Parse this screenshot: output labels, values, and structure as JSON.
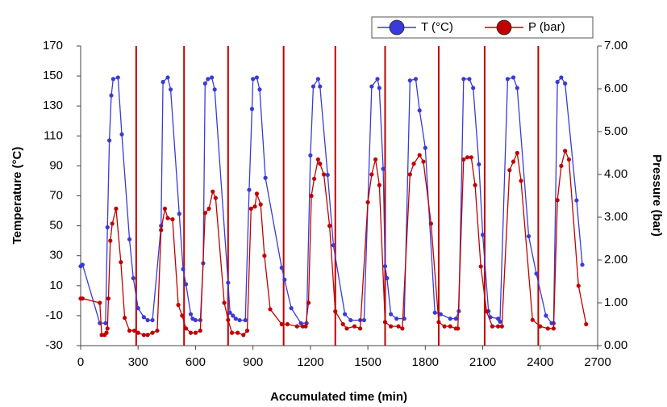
{
  "chart_data": {
    "type": "line",
    "xlabel": "Accumulated time (min)",
    "ylabel": "Temperature (°C)",
    "y2label": "Pressure (bar)",
    "xlim": [
      0,
      2700
    ],
    "xticks": [
      0,
      300,
      600,
      900,
      1200,
      1500,
      1800,
      2100,
      2400,
      2700
    ],
    "ylim": [
      -30,
      170
    ],
    "yticks": [
      -30,
      -10,
      10,
      30,
      50,
      70,
      90,
      110,
      130,
      150,
      170
    ],
    "y2lim": [
      0,
      7
    ],
    "y2ticks": [
      {
        "value": 0,
        "label": "0.00"
      },
      {
        "value": 1,
        "label": "1.00"
      },
      {
        "value": 2,
        "label": "2.00"
      },
      {
        "value": 3,
        "label": "3.00"
      },
      {
        "value": 4,
        "label": "4.00"
      },
      {
        "value": 5,
        "label": "5.00"
      },
      {
        "value": 6,
        "label": "6.00"
      },
      {
        "value": 7,
        "label": "7.00"
      }
    ],
    "legend": "top-right",
    "vlines": {
      "color": "#c00000",
      "x": [
        290,
        540,
        770,
        1060,
        1330,
        1590,
        1870,
        2110,
        2390
      ]
    },
    "series": [
      {
        "name": "T (°C)",
        "color": "#3a3ad6",
        "axis": "y",
        "x": [
          0,
          10,
          100,
          130,
          140,
          150,
          160,
          170,
          195,
          215,
          255,
          275,
          300,
          330,
          350,
          375,
          420,
          430,
          455,
          470,
          515,
          535,
          550,
          575,
          585,
          600,
          625,
          640,
          650,
          665,
          685,
          700,
          770,
          780,
          795,
          810,
          830,
          860,
          880,
          895,
          900,
          920,
          935,
          965,
          1050,
          1065,
          1100,
          1150,
          1180,
          1200,
          1215,
          1240,
          1250,
          1290,
          1320,
          1380,
          1410,
          1460,
          1480,
          1520,
          1550,
          1560,
          1580,
          1590,
          1600,
          1620,
          1650,
          1690,
          1720,
          1750,
          1770,
          1800,
          1850,
          1880,
          1930,
          1960,
          1975,
          2000,
          2030,
          2050,
          2080,
          2100,
          2130,
          2140,
          2180,
          2190,
          2230,
          2260,
          2280,
          2340,
          2380,
          2430,
          2460,
          2470,
          2490,
          2510,
          2530,
          2590,
          2620
        ],
        "values": [
          23,
          24,
          -15,
          -15,
          49,
          107,
          137,
          148,
          149,
          111,
          41,
          15,
          -5,
          -11,
          -13,
          -13,
          50,
          146,
          149,
          141,
          58,
          21,
          11,
          -9,
          -12,
          -13,
          -13,
          25,
          145,
          148,
          149,
          141,
          12,
          -8,
          -10,
          -12,
          -13,
          -13,
          74,
          128,
          148,
          149,
          141,
          82,
          22,
          14,
          -5,
          -15,
          -15,
          97,
          143,
          148,
          143,
          84,
          37,
          -9,
          -13,
          -13,
          -13,
          143,
          148,
          142,
          88,
          23,
          15,
          -9,
          -12,
          -12,
          147,
          148,
          127,
          102,
          -8,
          -9,
          -12,
          -12,
          -7,
          148,
          148,
          142,
          91,
          44,
          -7,
          -11,
          -12,
          -14,
          148,
          149,
          142,
          43,
          18,
          -10,
          -15,
          -15,
          146,
          149,
          145,
          67,
          24
        ]
      },
      {
        "name": "P (bar)",
        "color": "#c00000",
        "axis": "y2",
        "x": [
          0,
          10,
          100,
          110,
          125,
          135,
          140,
          145,
          155,
          165,
          185,
          210,
          230,
          255,
          280,
          300,
          330,
          350,
          375,
          400,
          420,
          440,
          455,
          480,
          510,
          530,
          550,
          575,
          600,
          625,
          650,
          670,
          690,
          705,
          750,
          770,
          790,
          820,
          850,
          870,
          890,
          910,
          920,
          940,
          960,
          990,
          1050,
          1080,
          1130,
          1160,
          1175,
          1190,
          1205,
          1220,
          1240,
          1250,
          1270,
          1300,
          1330,
          1370,
          1390,
          1430,
          1460,
          1500,
          1520,
          1540,
          1560,
          1590,
          1620,
          1660,
          1680,
          1720,
          1740,
          1770,
          1790,
          1830,
          1870,
          1900,
          1930,
          1960,
          1970,
          2000,
          2020,
          2040,
          2060,
          2090,
          2120,
          2150,
          2180,
          2200,
          2240,
          2260,
          2280,
          2300,
          2360,
          2400,
          2440,
          2470,
          2490,
          2510,
          2530,
          2550,
          2600,
          2640
        ],
        "values": [
          1.1,
          1.1,
          1.0,
          0.25,
          0.25,
          0.3,
          0.4,
          1.1,
          2.45,
          2.85,
          3.2,
          1.95,
          0.65,
          0.35,
          0.35,
          0.3,
          0.25,
          0.25,
          0.3,
          0.35,
          2.7,
          3.2,
          2.98,
          2.95,
          0.95,
          0.7,
          0.4,
          0.3,
          0.3,
          0.35,
          3.1,
          3.2,
          3.6,
          3.45,
          1.0,
          0.6,
          0.3,
          0.3,
          0.25,
          0.35,
          3.2,
          3.25,
          3.55,
          3.3,
          2.1,
          0.85,
          0.5,
          0.5,
          0.45,
          0.45,
          0.45,
          1.0,
          3.5,
          3.9,
          4.35,
          4.25,
          4.0,
          2.8,
          0.8,
          0.5,
          0.4,
          0.45,
          0.4,
          3.35,
          4.0,
          4.35,
          3.75,
          0.55,
          0.45,
          0.45,
          0.4,
          4.0,
          4.25,
          4.45,
          4.3,
          2.85,
          0.55,
          0.45,
          0.45,
          0.4,
          0.4,
          4.35,
          4.4,
          4.4,
          3.75,
          1.85,
          0.8,
          0.45,
          0.45,
          0.45,
          4.1,
          4.3,
          4.5,
          3.85,
          0.6,
          0.45,
          0.4,
          0.4,
          3.4,
          4.2,
          4.55,
          4.35,
          1.4,
          0.5
        ]
      }
    ]
  }
}
